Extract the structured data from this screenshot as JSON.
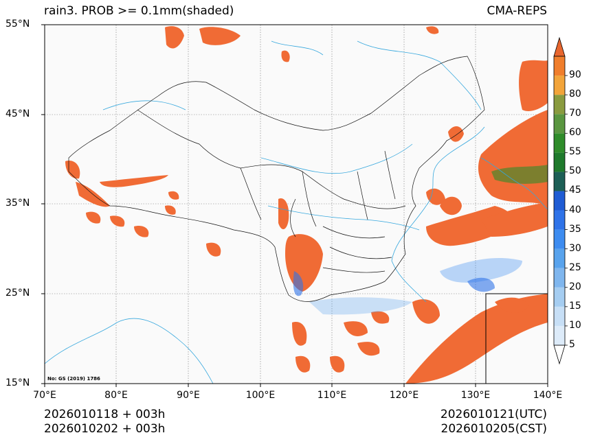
{
  "header": {
    "title_left": "rain3. PROB >= 0.1mm(shaded)",
    "title_right": "CMA-REPS"
  },
  "axes": {
    "lat_labels": [
      "55°N",
      "45°N",
      "35°N",
      "25°N",
      "15°N"
    ],
    "lon_labels": [
      "70°E",
      "80°E",
      "90°E",
      "100°E",
      "110°E",
      "120°E",
      "130°E",
      "140°E"
    ],
    "lat_range": [
      15,
      55
    ],
    "lon_range": [
      70,
      140
    ]
  },
  "map": {
    "inset_note": "No: GS (2019) 1786",
    "grid": "dotted",
    "colors": {
      "land_border": "#000000",
      "river": "#35a7dd",
      "background": "#fafafa",
      "dominant_shade": "#f06b35"
    }
  },
  "colorbar": {
    "levels": [
      "5",
      "10",
      "15",
      "20",
      "25",
      "30",
      "35",
      "40",
      "45",
      "50",
      "55",
      "60",
      "70",
      "80",
      "90"
    ],
    "colors": [
      "#ddebf9",
      "#c7dff6",
      "#a5cdf1",
      "#7fb6ee",
      "#58a3ed",
      "#3d8cf0",
      "#2f73e8",
      "#1f5cd4",
      "#1d5f56",
      "#1f7a2c",
      "#2f8c2a",
      "#5a9640",
      "#8a9b3f",
      "#f2a43a",
      "#f07e2c"
    ],
    "extend_low": "#ffffff",
    "extend_high": "#e8662e"
  },
  "footer": {
    "init_utc": "2026010118  +  003h",
    "init_cst": "2026010202  +  003h",
    "valid_utc": "2026010121(UTC)",
    "valid_cst": "2026010205(CST)"
  }
}
